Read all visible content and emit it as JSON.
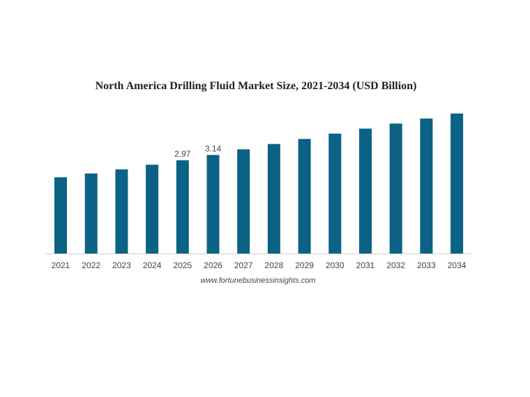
{
  "chart_data": {
    "type": "bar",
    "title": "North America Drilling Fluid Market Size, 2021-2034 (USD Billion)",
    "categories": [
      "2021",
      "2022",
      "2023",
      "2024",
      "2025",
      "2026",
      "2027",
      "2028",
      "2029",
      "2030",
      "2031",
      "2032",
      "2033",
      "2034"
    ],
    "values": [
      2.43,
      2.55,
      2.68,
      2.83,
      2.97,
      3.14,
      3.32,
      3.49,
      3.65,
      3.82,
      3.98,
      4.14,
      4.3,
      4.46
    ],
    "data_labels": [
      {
        "category": "2025",
        "text": "2.97"
      },
      {
        "category": "2026",
        "text": "3.14"
      }
    ],
    "ylim": [
      0,
      4.46
    ],
    "grid": false,
    "bar_color": "#0b6285"
  },
  "source": "www.fortunebusinessinsights.com"
}
